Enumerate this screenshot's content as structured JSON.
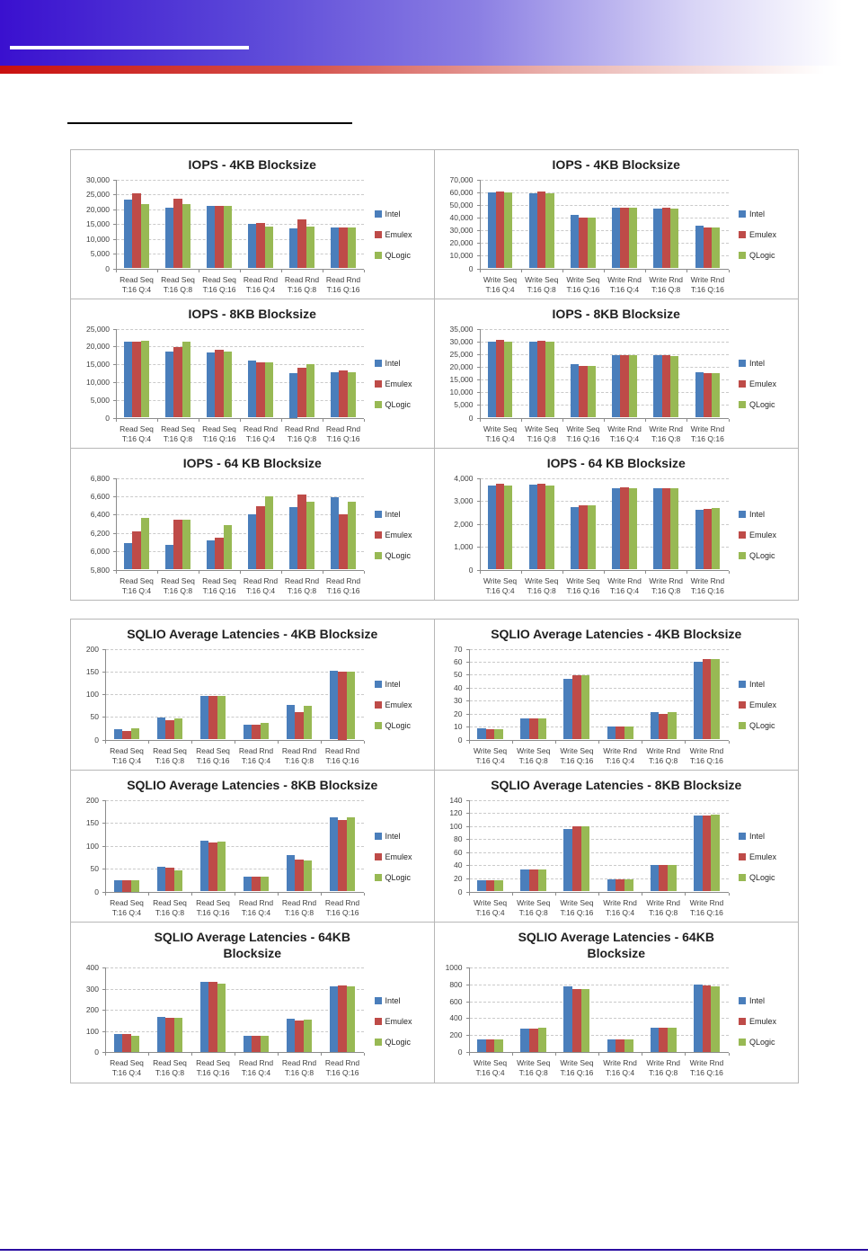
{
  "decor": {
    "banner_blue": "#3a10cf",
    "accent_red": "#c9100f",
    "footer_line_color": "#2a0da1",
    "cell_border_color": "#b7b7b7",
    "axis_color": "#8c8c8c",
    "gridline_color": "#cacaca",
    "text_color": "#262626"
  },
  "legend": {
    "items": [
      {
        "label": "Intel",
        "color": "#4A7EBB"
      },
      {
        "label": "Emulex",
        "color": "#BE4B48"
      },
      {
        "label": "QLogic",
        "color": "#98B954"
      }
    ]
  },
  "chart_data": [
    {
      "type": "bar",
      "title": "IOPS - 4KB Blocksize",
      "ylim": [
        0,
        30000
      ],
      "ystep": 5000,
      "comma": true,
      "grid": "dashed",
      "legend_position": "right",
      "categories": [
        [
          "Read Seq",
          "T:16 Q:4"
        ],
        [
          "Read Seq",
          "T:16 Q:8"
        ],
        [
          "Read Seq",
          "T:16 Q:16"
        ],
        [
          "Read Rnd",
          "T:16 Q:4"
        ],
        [
          "Read Rnd",
          "T:16 Q:8"
        ],
        [
          "Read Rnd",
          "T:16 Q:16"
        ]
      ],
      "series": [
        {
          "name": "Intel",
          "color": "#4A7EBB",
          "values": [
            23200,
            20400,
            21000,
            14900,
            13400,
            13800
          ]
        },
        {
          "name": "Emulex",
          "color": "#BE4B48",
          "values": [
            25400,
            23500,
            21100,
            15200,
            16600,
            13800
          ]
        },
        {
          "name": "QLogic",
          "color": "#98B954",
          "values": [
            21700,
            21700,
            21100,
            14100,
            14000,
            13800
          ]
        }
      ]
    },
    {
      "type": "bar",
      "title": "IOPS - 4KB Blocksize",
      "ylim": [
        0,
        70000
      ],
      "ystep": 10000,
      "comma": true,
      "grid": "dashed",
      "legend_position": "right",
      "categories": [
        [
          "Write Seq",
          "T:16 Q:4"
        ],
        [
          "Write Seq",
          "T:16 Q:8"
        ],
        [
          "Write Seq",
          "T:16 Q:16"
        ],
        [
          "Write Rnd",
          "T:16 Q:4"
        ],
        [
          "Write Rnd",
          "T:16 Q:8"
        ],
        [
          "Write Rnd",
          "T:16 Q:16"
        ]
      ],
      "series": [
        {
          "name": "Intel",
          "color": "#4A7EBB",
          "values": [
            59500,
            59000,
            41800,
            47700,
            47100,
            33900
          ]
        },
        {
          "name": "Emulex",
          "color": "#BE4B48",
          "values": [
            60200,
            60300,
            40300,
            47700,
            47800,
            32400
          ]
        },
        {
          "name": "QLogic",
          "color": "#98B954",
          "values": [
            60100,
            59000,
            40200,
            47700,
            46900,
            32400
          ]
        }
      ]
    },
    {
      "type": "bar",
      "title": "IOPS - 8KB Blocksize",
      "ylim": [
        0,
        25000
      ],
      "ystep": 5000,
      "comma": true,
      "grid": "dashed",
      "legend_position": "right",
      "categories": [
        [
          "Read Seq",
          "T:16 Q:4"
        ],
        [
          "Read Seq",
          "T:16 Q:8"
        ],
        [
          "Read Seq",
          "T:16 Q:16"
        ],
        [
          "Read Rnd",
          "T:16 Q:4"
        ],
        [
          "Read Rnd",
          "T:16 Q:8"
        ],
        [
          "Read Rnd",
          "T:16 Q:16"
        ]
      ],
      "series": [
        {
          "name": "Intel",
          "color": "#4A7EBB",
          "values": [
            21300,
            18500,
            18200,
            16100,
            12500,
            12700
          ]
        },
        {
          "name": "Emulex",
          "color": "#BE4B48",
          "values": [
            21300,
            19800,
            19000,
            15600,
            14100,
            13200
          ]
        },
        {
          "name": "QLogic",
          "color": "#98B954",
          "values": [
            21600,
            21300,
            18600,
            15600,
            15100,
            12700
          ]
        }
      ]
    },
    {
      "type": "bar",
      "title": "IOPS - 8KB Blocksize",
      "ylim": [
        0,
        35000
      ],
      "ystep": 5000,
      "comma": true,
      "grid": "dashed",
      "legend_position": "right",
      "categories": [
        [
          "Write Seq",
          "T:16 Q:4"
        ],
        [
          "Write Seq",
          "T:16 Q:8"
        ],
        [
          "Write Seq",
          "T:16 Q:16"
        ],
        [
          "Write Rnd",
          "T:16 Q:4"
        ],
        [
          "Write Rnd",
          "T:16 Q:8"
        ],
        [
          "Write Rnd",
          "T:16 Q:16"
        ]
      ],
      "series": [
        {
          "name": "Intel",
          "color": "#4A7EBB",
          "values": [
            29800,
            29700,
            21100,
            24600,
            24700,
            17700
          ]
        },
        {
          "name": "Emulex",
          "color": "#BE4B48",
          "values": [
            30500,
            30100,
            20400,
            24700,
            24700,
            17400
          ]
        },
        {
          "name": "QLogic",
          "color": "#98B954",
          "values": [
            30000,
            29800,
            20400,
            24500,
            24200,
            17400
          ]
        }
      ]
    },
    {
      "type": "bar",
      "title": "IOPS - 64 KB Blocksize",
      "ylim": [
        5800,
        6800
      ],
      "ystep": 200,
      "comma": true,
      "grid": "dashed",
      "legend_position": "right",
      "categories": [
        [
          "Read Seq",
          "T:16 Q:4"
        ],
        [
          "Read Seq",
          "T:16 Q:8"
        ],
        [
          "Read Seq",
          "T:16 Q:16"
        ],
        [
          "Read Rnd",
          "T:16 Q:4"
        ],
        [
          "Read Rnd",
          "T:16 Q:8"
        ],
        [
          "Read Rnd",
          "T:16 Q:16"
        ]
      ],
      "series": [
        {
          "name": "Intel",
          "color": "#4A7EBB",
          "values": [
            6090,
            6070,
            6120,
            6400,
            6480,
            6590
          ]
        },
        {
          "name": "Emulex",
          "color": "#BE4B48",
          "values": [
            6220,
            6340,
            6150,
            6490,
            6620,
            6400
          ]
        },
        {
          "name": "QLogic",
          "color": "#98B954",
          "values": [
            6360,
            6340,
            6290,
            6600,
            6540,
            6540
          ]
        }
      ]
    },
    {
      "type": "bar",
      "title": "IOPS - 64 KB Blocksize",
      "ylim": [
        0,
        4000
      ],
      "ystep": 1000,
      "comma": true,
      "grid": "dashed",
      "legend_position": "right",
      "categories": [
        [
          "Write Seq",
          "T:16 Q:4"
        ],
        [
          "Write Seq",
          "T:16 Q:8"
        ],
        [
          "Write Seq",
          "T:16 Q:16"
        ],
        [
          "Write Rnd",
          "T:16 Q:4"
        ],
        [
          "Write Rnd",
          "T:16 Q:8"
        ],
        [
          "Write Rnd",
          "T:16 Q:16"
        ]
      ],
      "series": [
        {
          "name": "Intel",
          "color": "#4A7EBB",
          "values": [
            3680,
            3720,
            2720,
            3540,
            3540,
            2600
          ]
        },
        {
          "name": "Emulex",
          "color": "#BE4B48",
          "values": [
            3760,
            3760,
            2790,
            3570,
            3540,
            2640
          ]
        },
        {
          "name": "QLogic",
          "color": "#98B954",
          "values": [
            3680,
            3650,
            2790,
            3540,
            3540,
            2680
          ]
        }
      ]
    },
    {
      "type": "bar",
      "title": "SQLIO Average Latencies - 4KB Blocksize",
      "ylim": [
        0,
        200
      ],
      "ystep": 50,
      "comma": false,
      "grid": "dashed",
      "legend_position": "right",
      "categories": [
        [
          "Read Seq",
          "T:16 Q:4"
        ],
        [
          "Read Seq",
          "T:16 Q:8"
        ],
        [
          "Read Seq",
          "T:16 Q:16"
        ],
        [
          "Read Rnd",
          "T:16 Q:4"
        ],
        [
          "Read Rnd",
          "T:16 Q:8"
        ],
        [
          "Read Rnd",
          "T:16 Q:16"
        ]
      ],
      "series": [
        {
          "name": "Intel",
          "color": "#4A7EBB",
          "values": [
            22,
            49,
            97,
            33,
            76,
            151
          ]
        },
        {
          "name": "Emulex",
          "color": "#BE4B48",
          "values": [
            18,
            43,
            97,
            33,
            60,
            150
          ]
        },
        {
          "name": "QLogic",
          "color": "#98B954",
          "values": [
            24,
            46,
            97,
            36,
            74,
            149
          ]
        }
      ]
    },
    {
      "type": "bar",
      "title": "SQLIO Average Latencies - 4KB Blocksize",
      "ylim": [
        0,
        70
      ],
      "ystep": 10,
      "comma": false,
      "grid": "dashed",
      "legend_position": "right",
      "categories": [
        [
          "Write Seq",
          "T:16 Q:4"
        ],
        [
          "Write Seq",
          "T:16 Q:8"
        ],
        [
          "Write Seq",
          "T:16 Q:16"
        ],
        [
          "Write Rnd",
          "T:16 Q:4"
        ],
        [
          "Write Rnd",
          "T:16 Q:8"
        ],
        [
          "Write Rnd",
          "T:16 Q:16"
        ]
      ],
      "series": [
        {
          "name": "Intel",
          "color": "#4A7EBB",
          "values": [
            8.5,
            16,
            47,
            10,
            21,
            60
          ]
        },
        {
          "name": "Emulex",
          "color": "#BE4B48",
          "values": [
            8,
            16,
            49.5,
            10,
            19.5,
            62
          ]
        },
        {
          "name": "QLogic",
          "color": "#98B954",
          "values": [
            8,
            16,
            49.5,
            10,
            21,
            62
          ]
        }
      ]
    },
    {
      "type": "bar",
      "title": "SQLIO Average Latencies - 8KB Blocksize",
      "ylim": [
        0,
        200
      ],
      "ystep": 50,
      "comma": false,
      "grid": "dashed",
      "legend_position": "right",
      "categories": [
        [
          "Read Seq",
          "T:16 Q:4"
        ],
        [
          "Read Seq",
          "T:16 Q:8"
        ],
        [
          "Read Seq",
          "T:16 Q:16"
        ],
        [
          "Read Rnd",
          "T:16 Q:4"
        ],
        [
          "Read Rnd",
          "T:16 Q:8"
        ],
        [
          "Read Rnd",
          "T:16 Q:16"
        ]
      ],
      "series": [
        {
          "name": "Intel",
          "color": "#4A7EBB",
          "values": [
            25,
            54,
            110,
            32,
            79,
            161
          ]
        },
        {
          "name": "Emulex",
          "color": "#BE4B48",
          "values": [
            25,
            51,
            106,
            32,
            70,
            155
          ]
        },
        {
          "name": "QLogic",
          "color": "#98B954",
          "values": [
            25,
            47,
            108,
            32,
            68,
            161
          ]
        }
      ]
    },
    {
      "type": "bar",
      "title": "SQLIO Average Latencies - 8KB Blocksize",
      "ylim": [
        0,
        140
      ],
      "ystep": 20,
      "comma": false,
      "grid": "dashed",
      "legend_position": "right",
      "categories": [
        [
          "Write Seq",
          "T:16 Q:4"
        ],
        [
          "Write Seq",
          "T:16 Q:8"
        ],
        [
          "Write Seq",
          "T:16 Q:16"
        ],
        [
          "Write Rnd",
          "T:16 Q:4"
        ],
        [
          "Write Rnd",
          "T:16 Q:8"
        ],
        [
          "Write Rnd",
          "T:16 Q:16"
        ]
      ],
      "series": [
        {
          "name": "Intel",
          "color": "#4A7EBB",
          "values": [
            17,
            34,
            95,
            19,
            40,
            116
          ]
        },
        {
          "name": "Emulex",
          "color": "#BE4B48",
          "values": [
            17,
            33,
            99,
            19,
            40,
            116
          ]
        },
        {
          "name": "QLogic",
          "color": "#98B954",
          "values": [
            17,
            34,
            99,
            19,
            40,
            117
          ]
        }
      ]
    },
    {
      "type": "bar",
      "title": "SQLIO Average Latencies - 64KB\nBlocksize",
      "ylim": [
        0,
        400
      ],
      "ystep": 100,
      "comma": false,
      "grid": "dashed",
      "legend_position": "right",
      "categories": [
        [
          "Read Seq",
          "T:16 Q:4"
        ],
        [
          "Read Seq",
          "T:16 Q:8"
        ],
        [
          "Read Seq",
          "T:16 Q:16"
        ],
        [
          "Read Rnd",
          "T:16 Q:4"
        ],
        [
          "Read Rnd",
          "T:16 Q:8"
        ],
        [
          "Read Rnd",
          "T:16 Q:16"
        ]
      ],
      "series": [
        {
          "name": "Intel",
          "color": "#4A7EBB",
          "values": [
            83,
            168,
            333,
            75,
            157,
            312
          ]
        },
        {
          "name": "Emulex",
          "color": "#BE4B48",
          "values": [
            83,
            162,
            333,
            75,
            150,
            316
          ]
        },
        {
          "name": "QLogic",
          "color": "#98B954",
          "values": [
            75,
            162,
            323,
            75,
            155,
            312
          ]
        }
      ]
    },
    {
      "type": "bar",
      "title": "SQLIO Average Latencies - 64KB\nBlocksize",
      "ylim": [
        0,
        1000
      ],
      "ystep": 200,
      "comma": false,
      "grid": "dashed",
      "legend_position": "right",
      "categories": [
        [
          "Write Seq",
          "T:16 Q:4"
        ],
        [
          "Write Seq",
          "T:16 Q:8"
        ],
        [
          "Write Seq",
          "T:16 Q:16"
        ],
        [
          "Write Rnd",
          "T:16 Q:4"
        ],
        [
          "Write Rnd",
          "T:16 Q:8"
        ],
        [
          "Write Rnd",
          "T:16 Q:16"
        ]
      ],
      "series": [
        {
          "name": "Intel",
          "color": "#4A7EBB",
          "values": [
            145,
            280,
            775,
            145,
            290,
            800
          ]
        },
        {
          "name": "Emulex",
          "color": "#BE4B48",
          "values": [
            145,
            280,
            750,
            145,
            290,
            785
          ]
        },
        {
          "name": "QLogic",
          "color": "#98B954",
          "values": [
            145,
            290,
            745,
            145,
            290,
            775
          ]
        }
      ]
    }
  ]
}
